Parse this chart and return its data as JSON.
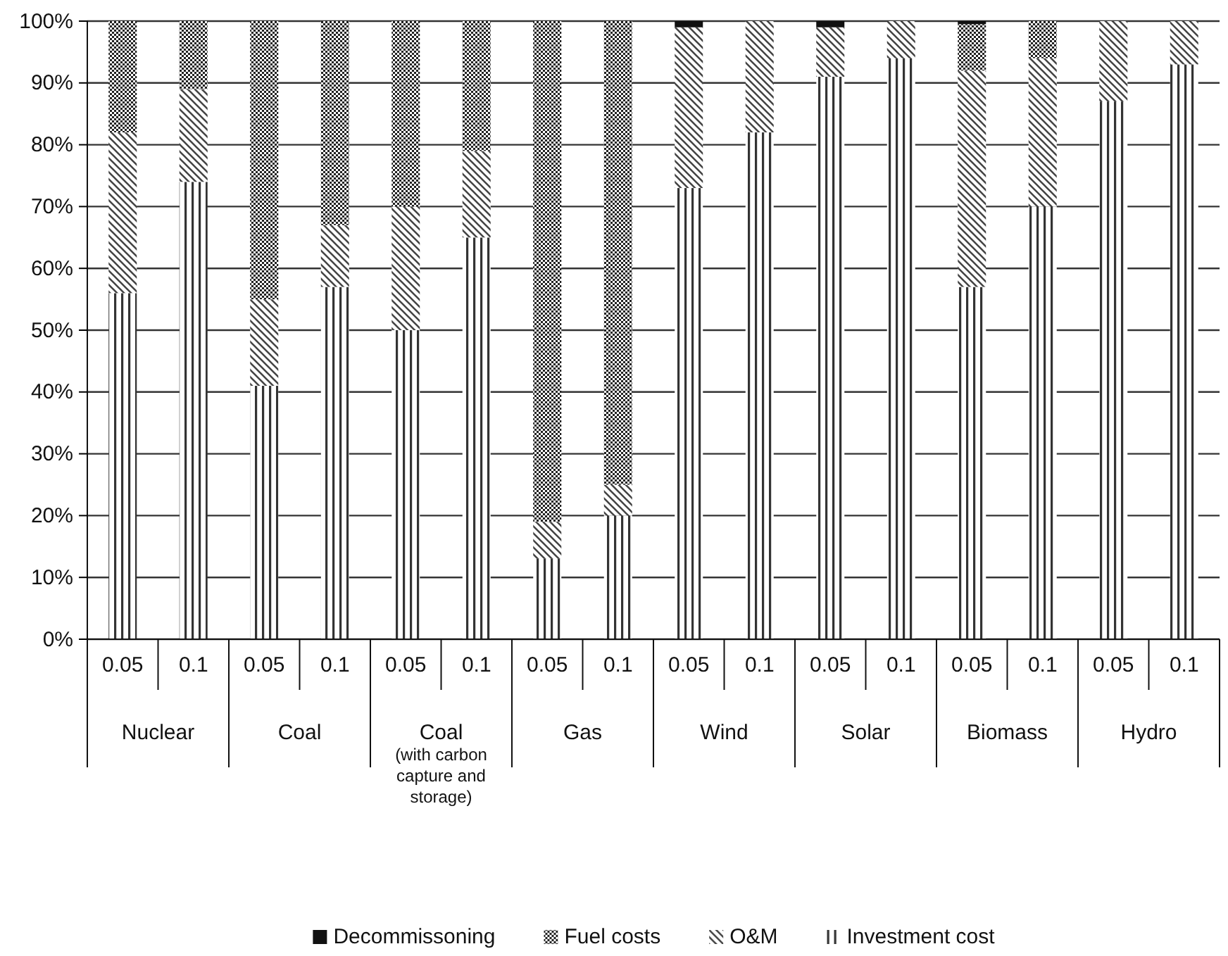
{
  "chart_data": {
    "type": "bar",
    "stacked": true,
    "categories": [
      "0.05",
      "0.1",
      "0.05",
      "0.1",
      "0.05",
      "0.1",
      "0.05",
      "0.1",
      "0.05",
      "0.1",
      "0.05",
      "0.1",
      "0.05",
      "0.1",
      "0.05",
      "0.1"
    ],
    "annotations": [
      "Nuclear",
      "Coal",
      "Coal (with carbon capture and storage)",
      "Gas",
      "Wind",
      "Solar",
      "Biomass",
      "Hydro"
    ],
    "series": [
      {
        "name": "Investment cost",
        "color": "#333333",
        "values": [
          56,
          74,
          41,
          57,
          50,
          65,
          13,
          20,
          73,
          82,
          91,
          94,
          57,
          70,
          87,
          93
        ]
      },
      {
        "name": "O&M",
        "color": "#444444",
        "values": [
          26,
          15,
          14,
          10,
          20,
          14,
          6,
          5,
          26,
          18,
          8,
          6,
          35,
          24,
          13,
          7
        ]
      },
      {
        "name": "Fuel costs",
        "color": "#222222",
        "values": [
          18,
          11,
          45,
          33,
          30,
          21,
          81,
          75,
          0,
          0,
          0,
          0,
          7.5,
          6,
          0,
          0
        ]
      },
      {
        "name": "Decommissoning",
        "color": "#111111",
        "values": [
          0,
          0,
          0,
          0,
          0,
          0,
          0,
          0,
          1,
          0,
          1,
          0,
          0.5,
          0,
          0,
          0
        ]
      }
    ],
    "ylim": [
      0,
      100
    ],
    "yticks": [
      {
        "value": 0,
        "label": "0%"
      },
      {
        "value": 10,
        "label": "10%"
      },
      {
        "value": 20,
        "label": "20%"
      },
      {
        "value": 30,
        "label": "30%"
      },
      {
        "value": 40,
        "label": "40%"
      },
      {
        "value": 50,
        "label": "50%"
      },
      {
        "value": 60,
        "label": "60%"
      },
      {
        "value": 70,
        "label": "70%"
      },
      {
        "value": 80,
        "label": "80%"
      },
      {
        "value": 90,
        "label": "90%"
      },
      {
        "value": 100,
        "label": "100%"
      }
    ],
    "grid": "y",
    "legend": "bottom"
  }
}
